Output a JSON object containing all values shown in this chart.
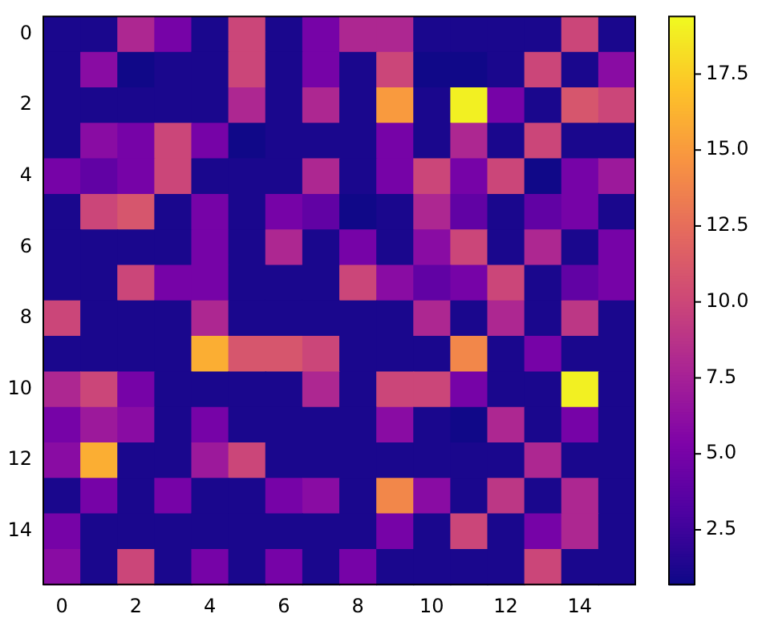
{
  "chart_data": {
    "type": "heatmap",
    "categories": [
      "0",
      null,
      "2",
      null,
      "4",
      null,
      "6",
      null,
      "8",
      null,
      "10",
      null,
      "12",
      null,
      "14",
      null
    ],
    "y_categories": [
      "0",
      null,
      "2",
      null,
      "4",
      null,
      "6",
      null,
      "8",
      null,
      "10",
      null,
      "12",
      null,
      "14",
      null
    ],
    "cells": [
      [
        1.2,
        1.2,
        8,
        5,
        1.2,
        10,
        1.2,
        5,
        8,
        8,
        1.2,
        1.2,
        1.2,
        1.2,
        10,
        1.2
      ],
      [
        1.2,
        6,
        0.8,
        1.2,
        1.2,
        10,
        1.2,
        5,
        1.2,
        10,
        0.8,
        0.8,
        1.2,
        10,
        1.2,
        6
      ],
      [
        1.2,
        1.2,
        1.2,
        1.2,
        1.2,
        8,
        1.2,
        8,
        1.2,
        15,
        1.2,
        19,
        5,
        1.2,
        11,
        10
      ],
      [
        1.2,
        6,
        5,
        10,
        5,
        0.8,
        1.2,
        1.2,
        1.2,
        5,
        1.2,
        8,
        1.2,
        10,
        1.2,
        1.2
      ],
      [
        5,
        4,
        5,
        10,
        1.2,
        1.2,
        1.2,
        8,
        1.2,
        5,
        10,
        5,
        10,
        0.8,
        5,
        7
      ],
      [
        1.2,
        10,
        11,
        1.2,
        5,
        1.2,
        5,
        4,
        0.8,
        1.2,
        8,
        4,
        1.2,
        4,
        5,
        1.2
      ],
      [
        1.2,
        1.2,
        1.2,
        1.2,
        5,
        1.2,
        8,
        1.2,
        5,
        1.2,
        6,
        10,
        1.2,
        8,
        1.2,
        5
      ],
      [
        1.2,
        1.2,
        10,
        5,
        5,
        1.2,
        1.2,
        1.2,
        10,
        6,
        4,
        5,
        10,
        1.2,
        4,
        5
      ],
      [
        10,
        1.2,
        1.2,
        1.2,
        8,
        1.2,
        1.2,
        1.2,
        1.2,
        1.2,
        8,
        1.2,
        8,
        1.2,
        9,
        1.2
      ],
      [
        1.2,
        1.2,
        1.2,
        1.2,
        16,
        11,
        11,
        10,
        1.2,
        1.2,
        1.2,
        14,
        1.2,
        5,
        1.2,
        1.2
      ],
      [
        8,
        10,
        5,
        1.2,
        1.2,
        1.2,
        1.2,
        8,
        1.2,
        10,
        10,
        5,
        1.2,
        1.2,
        19,
        1.2
      ],
      [
        5,
        7,
        6,
        1.2,
        5,
        1.2,
        1.2,
        1.2,
        1.2,
        6,
        1.2,
        0.8,
        8,
        1.2,
        5,
        1.2
      ],
      [
        6,
        16,
        1.2,
        1.2,
        7,
        10,
        1.2,
        1.2,
        1.2,
        1.2,
        1.2,
        1.2,
        1.2,
        8,
        1.2,
        1.2
      ],
      [
        1.2,
        5,
        1.2,
        5,
        1.2,
        1.2,
        5,
        6,
        1.2,
        14,
        6,
        1.2,
        9,
        1.2,
        8,
        1.2
      ],
      [
        5,
        1.2,
        1.2,
        1.2,
        1.2,
        1.2,
        1.2,
        1.2,
        1.2,
        5,
        1.2,
        10,
        1.2,
        5,
        8,
        1.2
      ],
      [
        6,
        1.2,
        10,
        1.2,
        5,
        1.2,
        5,
        1.2,
        5,
        1.2,
        1.2,
        1.2,
        1.2,
        10,
        1.2,
        1.2
      ]
    ],
    "clim": [
      0.7,
      19.4
    ],
    "cticks": [
      {
        "value": 2.5,
        "label": "2.5"
      },
      {
        "value": 5,
        "label": "5.0"
      },
      {
        "value": 7.5,
        "label": "7.5"
      },
      {
        "value": 10,
        "label": "10.0"
      },
      {
        "value": 12.5,
        "label": "12.5"
      },
      {
        "value": 15,
        "label": "15.0"
      },
      {
        "value": 17.5,
        "label": "17.5"
      }
    ]
  }
}
